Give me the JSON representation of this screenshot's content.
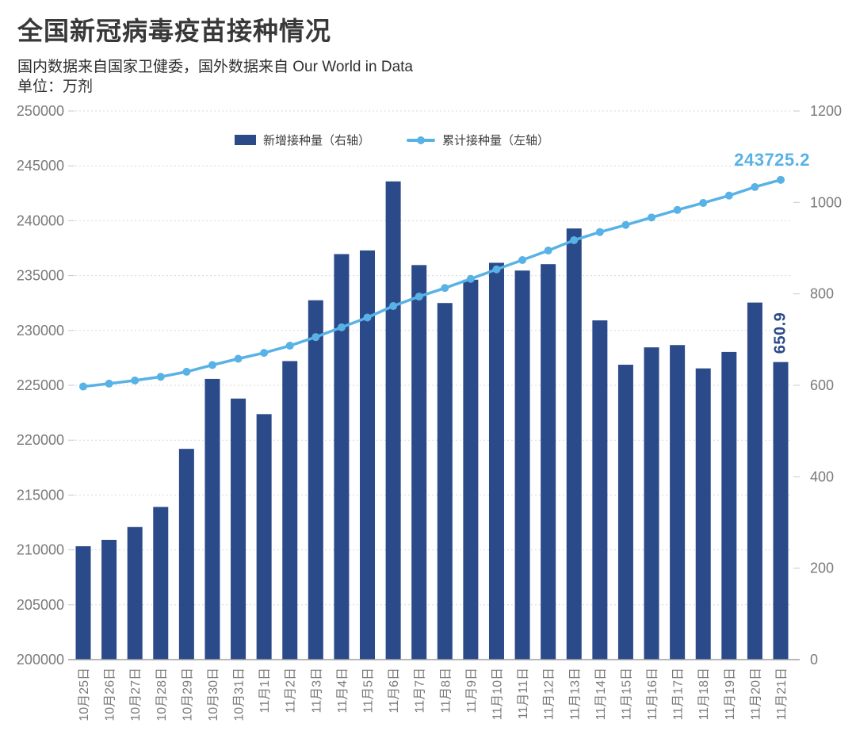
{
  "annotations": {
    "last_cumulative": "243725.2",
    "last_daily": "650.9"
  },
  "colors": {
    "bar_navy": "#2b4a8a",
    "line_blue": "#58b2e6",
    "grid_gray": "#d9d9d9",
    "axis_gray": "#a0a0a0",
    "tick_label_gray": "#7a7a7a",
    "text_dark": "#383838"
  },
  "chart_data": {
    "type": "bar+line dual-axis combo",
    "title": "全国新冠病毒疫苗接种情况",
    "subtitle": "国内数据来自国家卫健委，国外数据来自 Our World in Data",
    "unit": "单位：万剂",
    "grid": "horizontal dashed gridlines on",
    "legend_position": "top center inside plot",
    "categories": [
      "10月25日",
      "10月26日",
      "10月27日",
      "10月28日",
      "10月29日",
      "10月30日",
      "10月31日",
      "11月1日",
      "11月2日",
      "11月3日",
      "11月4日",
      "11月5日",
      "11月6日",
      "11月7日",
      "11月8日",
      "11月9日",
      "11月10日",
      "11月11日",
      "11月12日",
      "11月13日",
      "11月14日",
      "11月15日",
      "11月16日",
      "11月17日",
      "11月18日",
      "11月19日",
      "11月20日",
      "11月21日"
    ],
    "series": [
      {
        "name": "新增接种量（右轴）",
        "type": "bar",
        "axis": "right",
        "color": "#2b4a8a",
        "values": [
          248,
          262,
          290,
          334,
          461,
          614,
          571,
          537,
          653,
          786,
          887,
          895,
          1046,
          863,
          780,
          831,
          868,
          851,
          865,
          943,
          742,
          645,
          683,
          688,
          637,
          673,
          781,
          650.9
        ]
      },
      {
        "name": "累计接种量（左轴）",
        "type": "line",
        "axis": "left",
        "color": "#58b2e6",
        "values": [
          224888.3,
          225150.3,
          225440.3,
          225774.3,
          226235.3,
          226849.3,
          227420.3,
          227957.3,
          228610.3,
          229396.3,
          230283.3,
          231178.3,
          232224.3,
          233087.3,
          233867.3,
          234698.3,
          235566.3,
          236417.3,
          237282.3,
          238225.3,
          238967.3,
          239612.3,
          240295.3,
          240983.3,
          241620.3,
          242293.3,
          243074.3,
          243725.2
        ]
      }
    ],
    "left_axis": {
      "min": 200000,
      "max": 250000,
      "step": 5000,
      "ticks": [
        250000,
        245000,
        240000,
        235000,
        230000,
        225000,
        220000,
        215000,
        210000,
        205000,
        200000
      ]
    },
    "right_axis": {
      "min": 0,
      "max": 1200,
      "step": 200,
      "ticks": [
        1200,
        1000,
        800,
        600,
        400,
        200,
        0
      ]
    }
  }
}
